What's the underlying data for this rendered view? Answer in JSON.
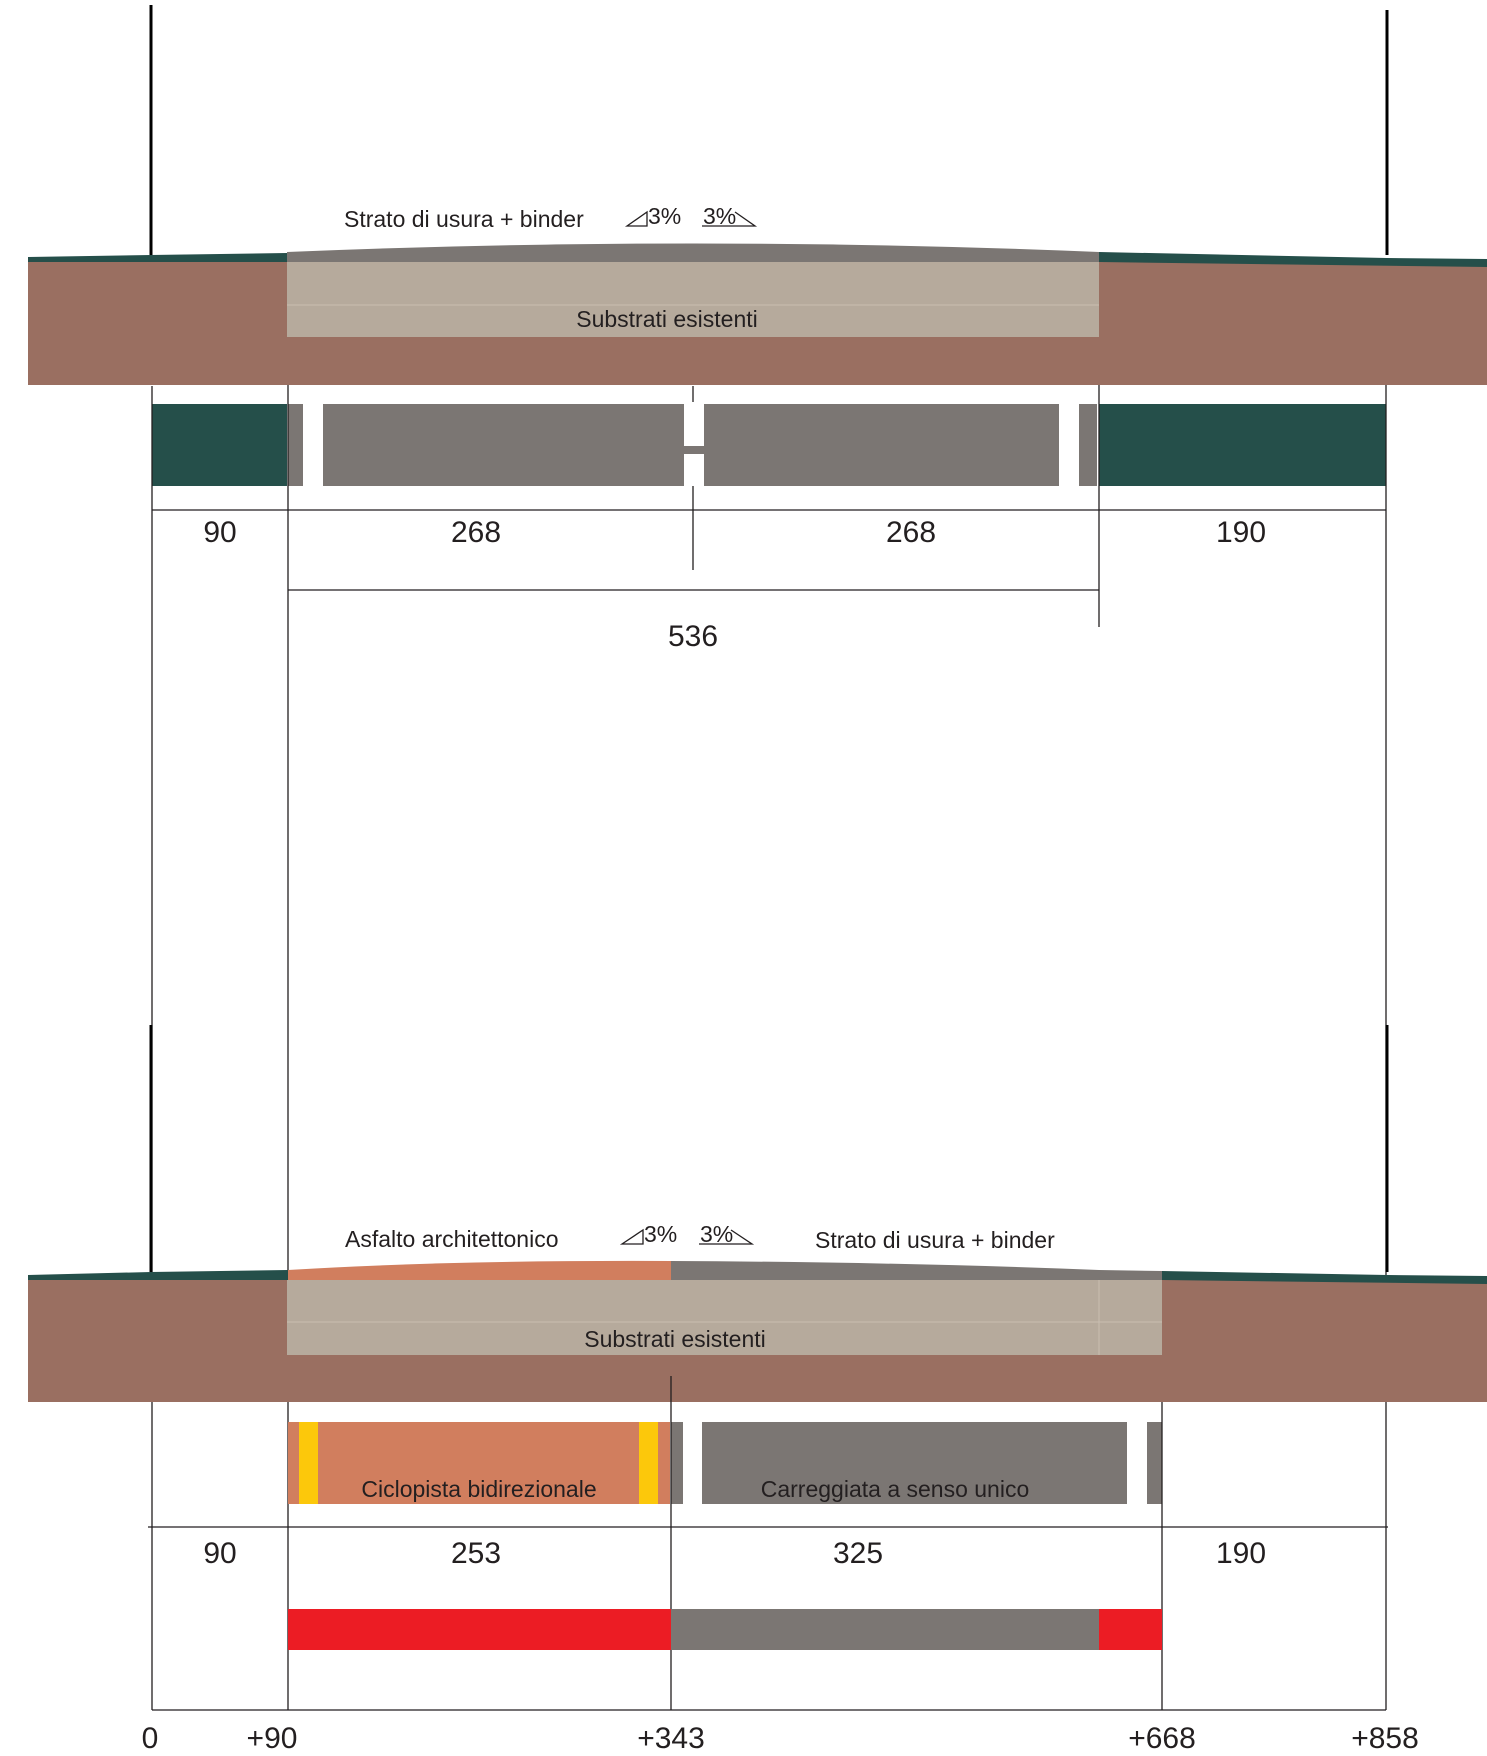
{
  "sections": {
    "existing": {
      "layer_top_label": "Strato di usura + binder",
      "substrate_label": "Substrati esistenti",
      "slope_left": "3%",
      "slope_right": "3%",
      "dimensions": [
        "90",
        "268",
        "268",
        "190"
      ],
      "total_dimension": "536"
    },
    "project": {
      "layer_left_label": "Asfalto architettonico",
      "layer_right_label": "Strato di usura + binder",
      "substrate_label": "Substrati esistenti",
      "slope_left": "3%",
      "slope_right": "3%",
      "cycle_lane_label": "Ciclopista bidirezionale",
      "carriageway_label": "Carreggiata a senso unico",
      "dimensions": [
        "90",
        "253",
        "325",
        "190"
      ]
    }
  },
  "axis_stations": [
    "0",
    "+90",
    "+343",
    "+668",
    "+858"
  ],
  "colors": {
    "soil": "#9a6f61",
    "substrate": "#b6aa9c",
    "asphalt_grey": "#7b7673",
    "sidewalk_green": "#254f4a",
    "architectural_asphalt": "#d17e5e",
    "cycle_marking_yellow": "#fcc80b",
    "highlight_red": "#ec1c24"
  }
}
